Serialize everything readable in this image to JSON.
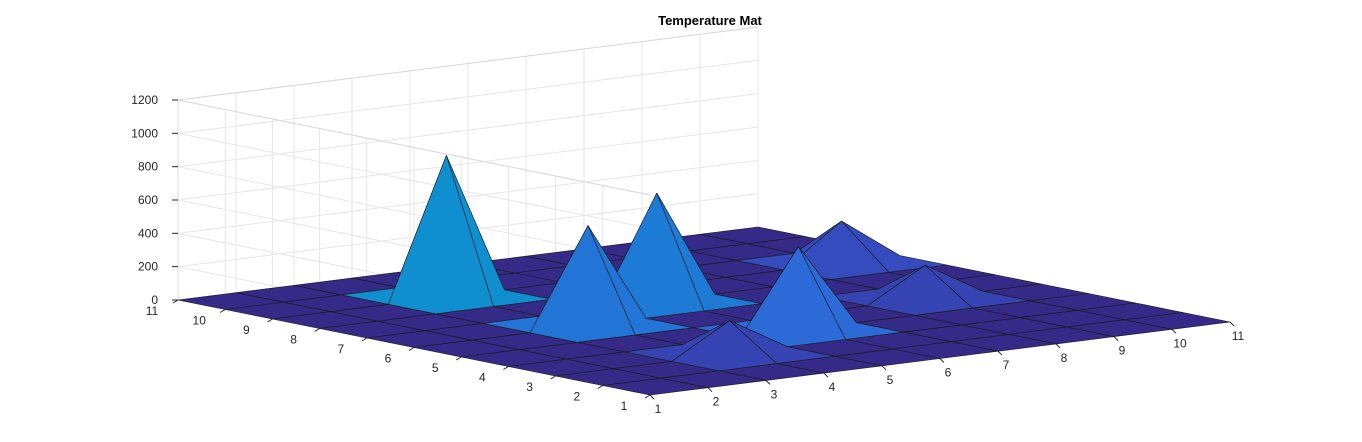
{
  "chart_data": {
    "type": "surface",
    "title": "Temperature Mat",
    "xlabel": "",
    "ylabel": "",
    "zlabel": "",
    "x": [
      1,
      2,
      3,
      4,
      5,
      6,
      7,
      8,
      9,
      10,
      11
    ],
    "y": [
      1,
      2,
      3,
      4,
      5,
      6,
      7,
      8,
      9,
      10,
      11
    ],
    "zlim": [
      0,
      1200
    ],
    "z_ticks": [
      0,
      200,
      400,
      600,
      800,
      1000,
      1200
    ],
    "x_ticks": [
      1,
      2,
      3,
      4,
      5,
      6,
      7,
      8,
      9,
      10,
      11
    ],
    "y_ticks": [
      1,
      2,
      3,
      4,
      5,
      6,
      7,
      8,
      9,
      10,
      11
    ],
    "grid": true,
    "colormap": "parula",
    "z_rows_by_y": [
      [
        0,
        0,
        0,
        0,
        0,
        0,
        0,
        0,
        0,
        0,
        0
      ],
      [
        0,
        0,
        0,
        0,
        0,
        0,
        0,
        0,
        0,
        0,
        0
      ],
      [
        0,
        0,
        0,
        200,
        0,
        0,
        0,
        0,
        0,
        0,
        0
      ],
      [
        0,
        0,
        0,
        0,
        0,
        500,
        0,
        0,
        0,
        0,
        0
      ],
      [
        0,
        0,
        0,
        0,
        0,
        0,
        0,
        0,
        200,
        0,
        0
      ],
      [
        0,
        0,
        0,
        600,
        0,
        0,
        0,
        0,
        0,
        0,
        0
      ],
      [
        0,
        0,
        0,
        0,
        0,
        650,
        0,
        0,
        0,
        0,
        0
      ],
      [
        0,
        0,
        0,
        0,
        0,
        0,
        0,
        0,
        0,
        250,
        0
      ],
      [
        0,
        0,
        0,
        850,
        0,
        0,
        0,
        0,
        0,
        0,
        0
      ],
      [
        0,
        0,
        0,
        0,
        0,
        0,
        0,
        0,
        0,
        0,
        0
      ],
      [
        0,
        0,
        0,
        0,
        0,
        0,
        0,
        0,
        0,
        0,
        0
      ]
    ]
  }
}
